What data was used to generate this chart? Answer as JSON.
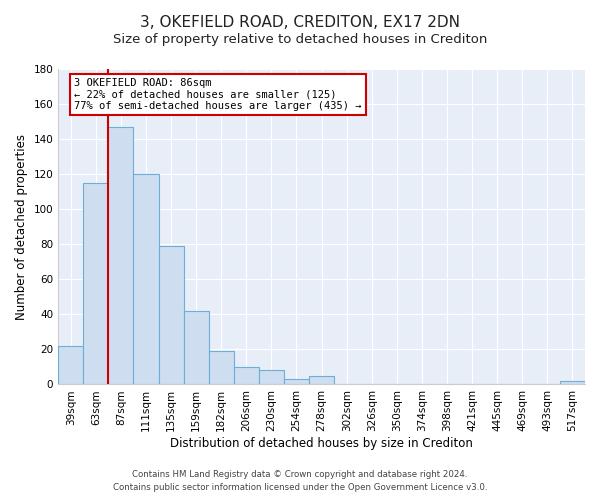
{
  "title": "3, OKEFIELD ROAD, CREDITON, EX17 2DN",
  "subtitle": "Size of property relative to detached houses in Crediton",
  "xlabel": "Distribution of detached houses by size in Crediton",
  "ylabel": "Number of detached properties",
  "bar_labels": [
    "39sqm",
    "63sqm",
    "87sqm",
    "111sqm",
    "135sqm",
    "159sqm",
    "182sqm",
    "206sqm",
    "230sqm",
    "254sqm",
    "278sqm",
    "302sqm",
    "326sqm",
    "350sqm",
    "374sqm",
    "398sqm",
    "421sqm",
    "445sqm",
    "469sqm",
    "493sqm",
    "517sqm"
  ],
  "bar_values": [
    22,
    115,
    147,
    120,
    79,
    42,
    19,
    10,
    8,
    3,
    5,
    0,
    0,
    0,
    0,
    0,
    0,
    0,
    0,
    0,
    2
  ],
  "bar_color": "#cfddf0",
  "bar_edge_color": "#6baed6",
  "ylim": [
    0,
    180
  ],
  "yticks": [
    0,
    20,
    40,
    60,
    80,
    100,
    120,
    140,
    160,
    180
  ],
  "vline_color": "#cc0000",
  "annotation_title": "3 OKEFIELD ROAD: 86sqm",
  "annotation_line1": "← 22% of detached houses are smaller (125)",
  "annotation_line2": "77% of semi-detached houses are larger (435) →",
  "annotation_box_color": "#ffffff",
  "annotation_box_edge_color": "#cc0000",
  "title_fontsize": 11,
  "subtitle_fontsize": 9.5,
  "axis_label_fontsize": 8.5,
  "tick_fontsize": 7.5,
  "annotation_fontsize": 7.5,
  "footer_line1": "Contains HM Land Registry data © Crown copyright and database right 2024.",
  "footer_line2": "Contains public sector information licensed under the Open Government Licence v3.0.",
  "background_color": "#ffffff",
  "plot_bg_color": "#e8eef8",
  "grid_color": "#ffffff"
}
